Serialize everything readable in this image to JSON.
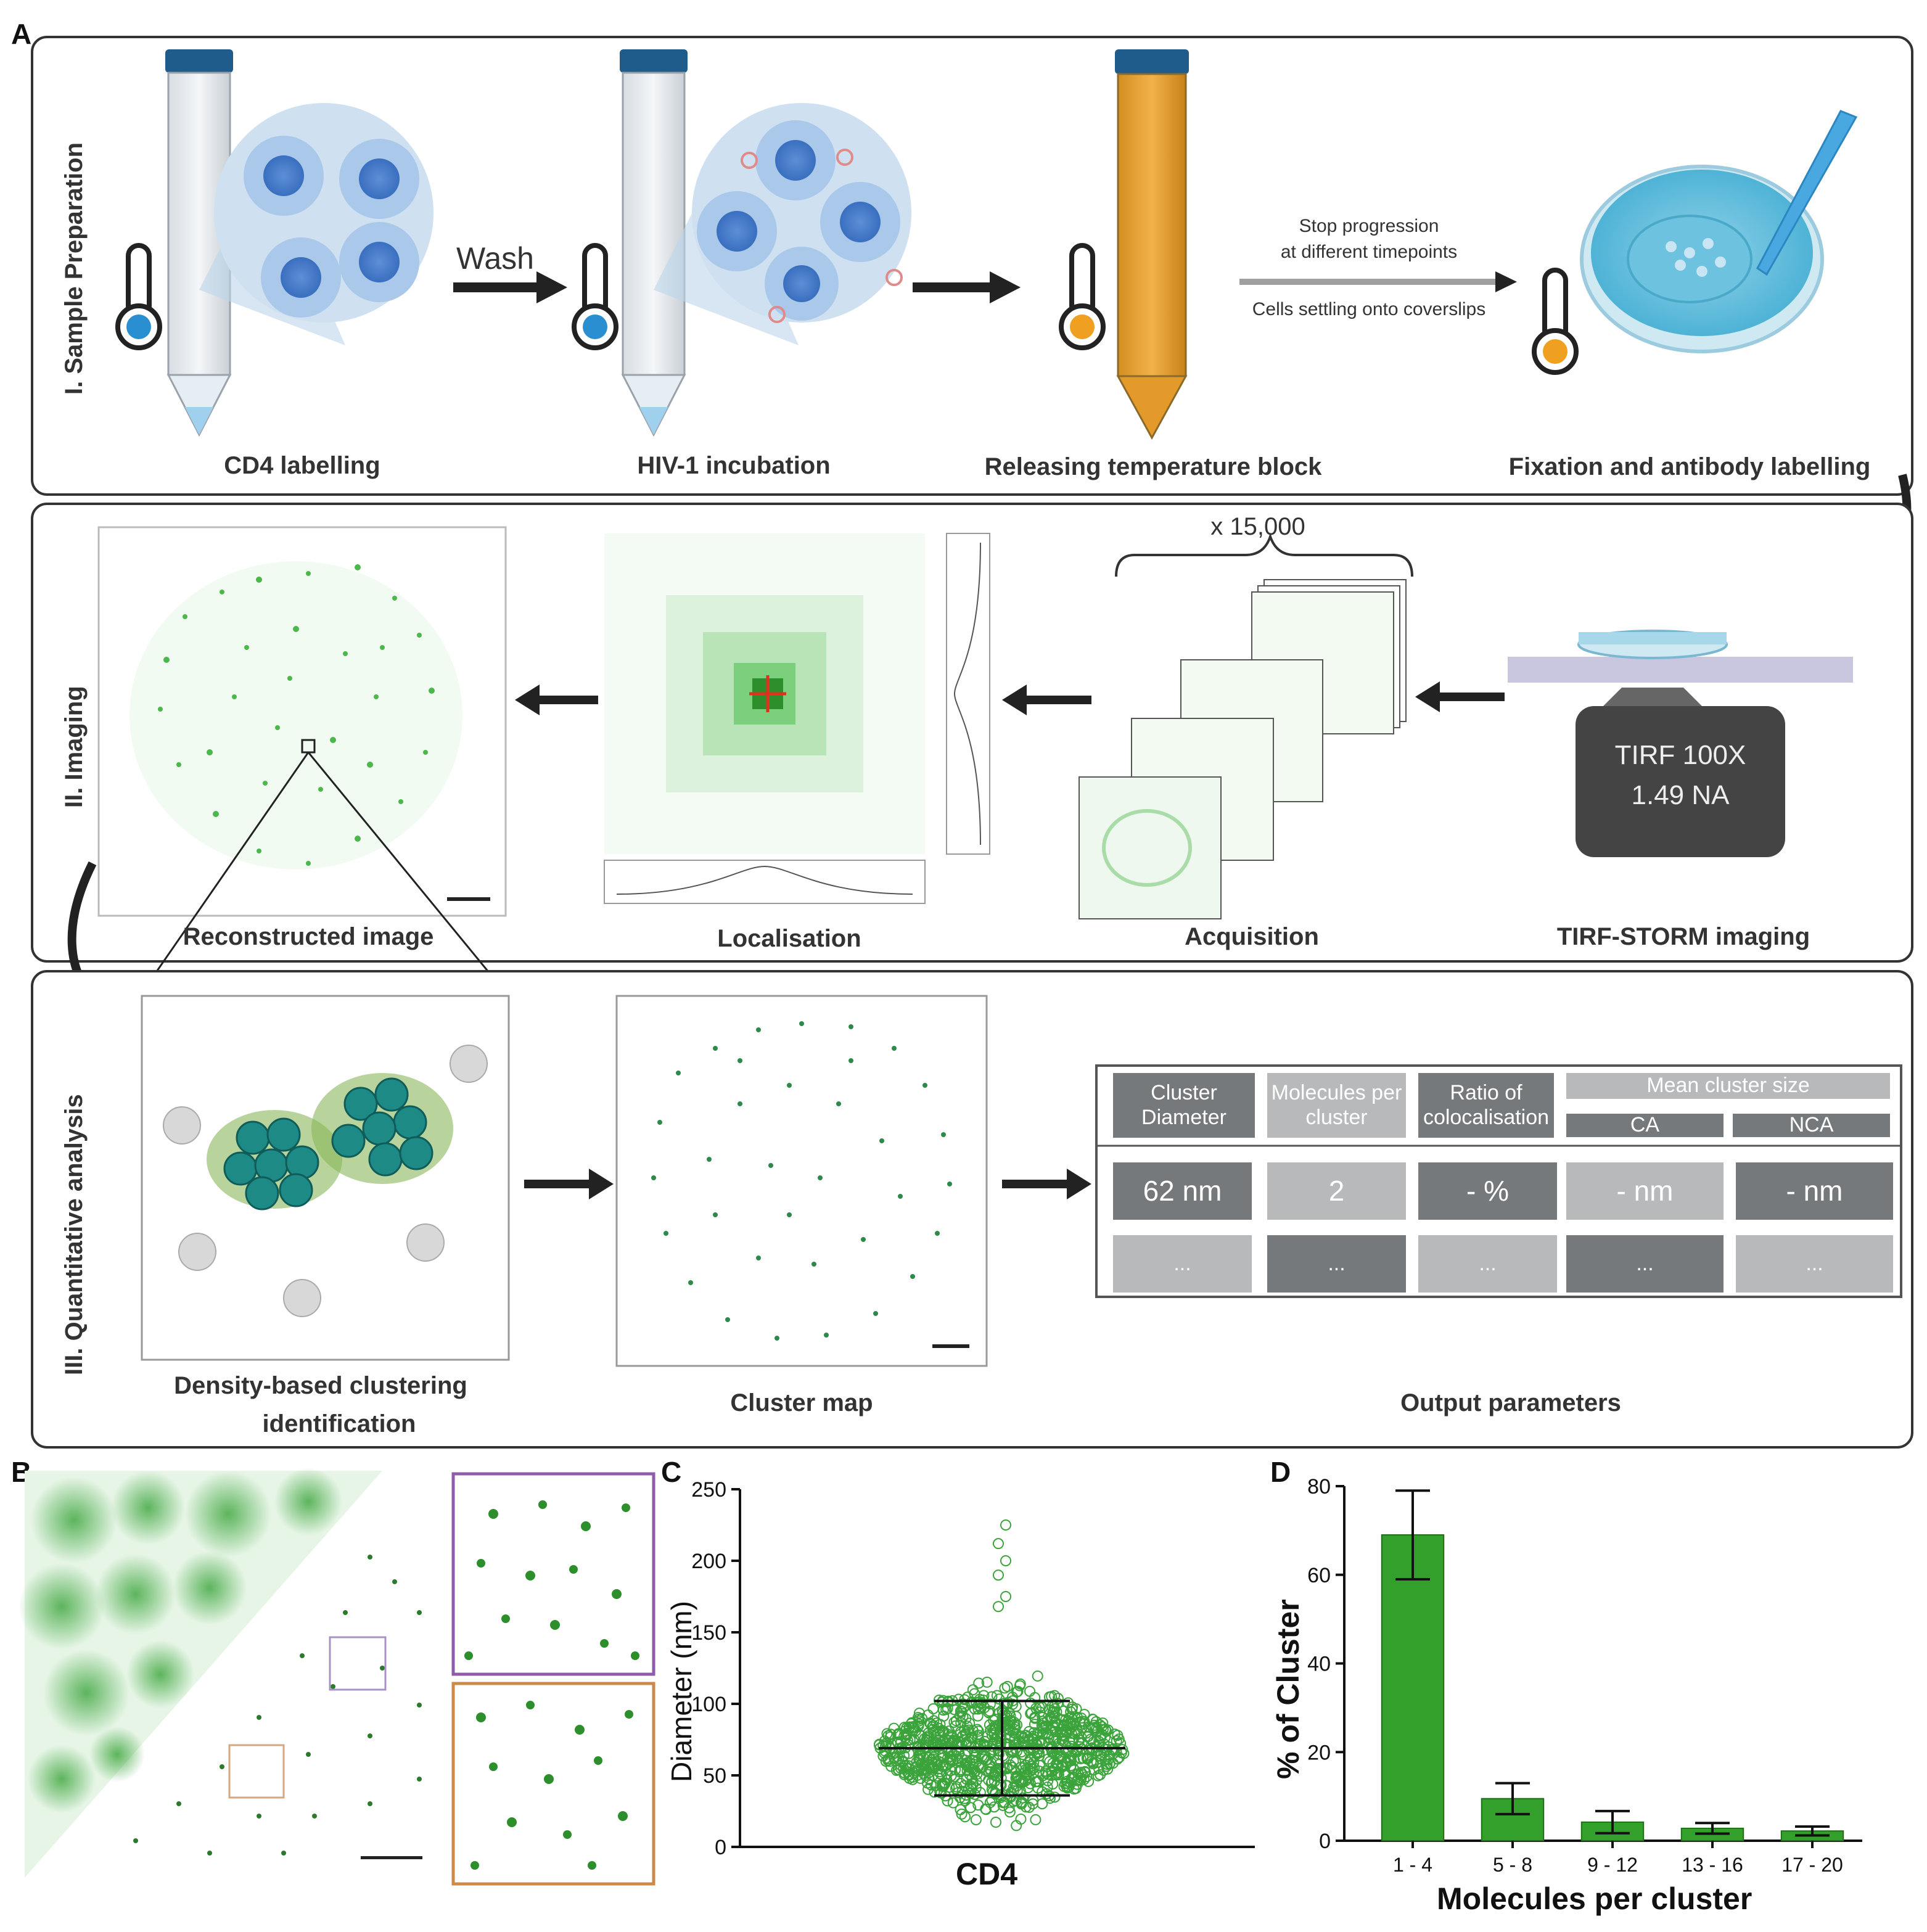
{
  "panel_letters": {
    "a": "A",
    "b": "B",
    "c": "C",
    "d": "D"
  },
  "section1": {
    "title": "I. Sample Preparation",
    "wash": "Wash",
    "note_line1": "Stop progression",
    "note_line2": "at different timepoints",
    "note_line3": "Cells settling onto coverslips",
    "steps": [
      "CD4 labelling",
      "HIV-1 incubation",
      "Releasing temperature block",
      "Fixation and antibody labelling"
    ]
  },
  "section2": {
    "title": "II. Imaging",
    "frames": "x 15,000",
    "objective_line1": "TIRF 100X",
    "objective_line2": "1.49 NA",
    "steps": [
      "Reconstructed image",
      "Localisation",
      "Acquisition",
      "TIRF-STORM imaging"
    ]
  },
  "section3": {
    "title": "III. Quantitative analysis",
    "steps": [
      "Density-based clustering",
      "identification",
      "Cluster map",
      "Output parameters"
    ],
    "table": {
      "headers": [
        "Cluster Diameter",
        "Molecules per cluster",
        "Ratio of colocalisation",
        "Mean cluster size"
      ],
      "subheaders": [
        "CA",
        "NCA"
      ],
      "row1": [
        "62 nm",
        "2",
        "- %",
        "- nm",
        "- nm"
      ],
      "row2": [
        "...",
        "...",
        "...",
        "...",
        "..."
      ]
    }
  },
  "colors": {
    "green": "#2ea02e",
    "dark_green": "#1e6b1e",
    "teal": "#1d8a86",
    "blue": "#3b8fd0",
    "orange": "#f0a020"
  },
  "chart_data": [
    {
      "type": "scatter",
      "panel": "C",
      "categories": [
        "CD4"
      ],
      "ylabel": "Diameter (nm)",
      "ylim": [
        0,
        250
      ],
      "yticks": [
        0,
        50,
        100,
        150,
        200,
        250
      ],
      "median": 69,
      "whisker_low": 36,
      "whisker_high": 102,
      "max": 225
    },
    {
      "type": "bar",
      "panel": "D",
      "categories": [
        "1 - 4",
        "5 - 8",
        "9 - 12",
        "13 - 16",
        "17 - 20"
      ],
      "values": [
        69,
        9.5,
        4.2,
        2.8,
        2.2
      ],
      "errors": [
        10,
        3.5,
        2.5,
        1.2,
        1.0
      ],
      "xlabel": "Molecules per cluster",
      "ylabel": "% of Cluster",
      "ylim": [
        0,
        80
      ],
      "yticks": [
        0,
        20,
        40,
        60,
        80
      ]
    }
  ]
}
